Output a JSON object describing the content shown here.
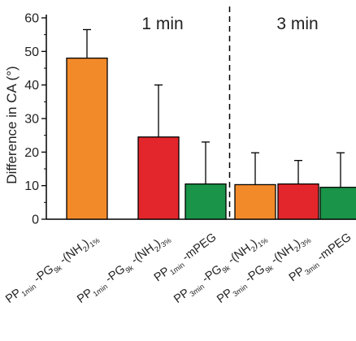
{
  "chart_data": {
    "type": "bar",
    "ylabel": "Difference in CA (°)",
    "ylim": [
      0,
      60
    ],
    "yticks": [
      0,
      10,
      20,
      30,
      40,
      50,
      60
    ],
    "panel_labels": [
      "1 min",
      "3 min"
    ],
    "divider_after_index": 2,
    "categories": [
      "PP1min-PG9k-(NH2)1%",
      "PP1min-PG9k-(NH2)3%",
      "PP1min-mPEG",
      "PP3min-PG9k-(NH2)1%",
      "PP3min-PG9k-(NH2)3%",
      "PP3min-mPEG"
    ],
    "category_parts": [
      [
        [
          "PP",
          ""
        ],
        [
          "1min",
          "sub"
        ],
        [
          " -PG",
          ""
        ],
        [
          "9k",
          "sub"
        ],
        [
          " -(NH",
          ""
        ],
        [
          "2",
          "sub"
        ],
        [
          ")",
          ""
        ],
        [
          "1%",
          "sub"
        ]
      ],
      [
        [
          "PP",
          ""
        ],
        [
          "1min",
          "sub"
        ],
        [
          " -PG",
          ""
        ],
        [
          "9k",
          "sub"
        ],
        [
          " -(NH",
          ""
        ],
        [
          "2",
          "sub"
        ],
        [
          ")",
          ""
        ],
        [
          "3%",
          "sub"
        ]
      ],
      [
        [
          "PP",
          ""
        ],
        [
          "1min",
          "sub"
        ],
        [
          " -mPEG",
          ""
        ]
      ],
      [
        [
          "PP",
          ""
        ],
        [
          "3min",
          "sub"
        ],
        [
          " -PG",
          ""
        ],
        [
          "9k",
          "sub"
        ],
        [
          " -(NH",
          ""
        ],
        [
          "2",
          "sub"
        ],
        [
          ")",
          ""
        ],
        [
          "1%",
          "sub"
        ]
      ],
      [
        [
          "PP",
          ""
        ],
        [
          "3min",
          "sub"
        ],
        [
          " -PG",
          ""
        ],
        [
          "9k",
          "sub"
        ],
        [
          " -(NH",
          ""
        ],
        [
          "2",
          "sub"
        ],
        [
          ")",
          ""
        ],
        [
          "3%",
          "sub"
        ]
      ],
      [
        [
          "PP",
          ""
        ],
        [
          "3min",
          "sub"
        ],
        [
          " -mPEG",
          ""
        ]
      ]
    ],
    "values": [
      48,
      24.5,
      10.5,
      10.3,
      10.5,
      9.5
    ],
    "errors": [
      8.5,
      15.5,
      12.5,
      9.5,
      7,
      10.3
    ],
    "colors": [
      "#f28a2a",
      "#e3262b",
      "#199448",
      "#f28a2a",
      "#e3262b",
      "#199448"
    ],
    "grid": false
  }
}
